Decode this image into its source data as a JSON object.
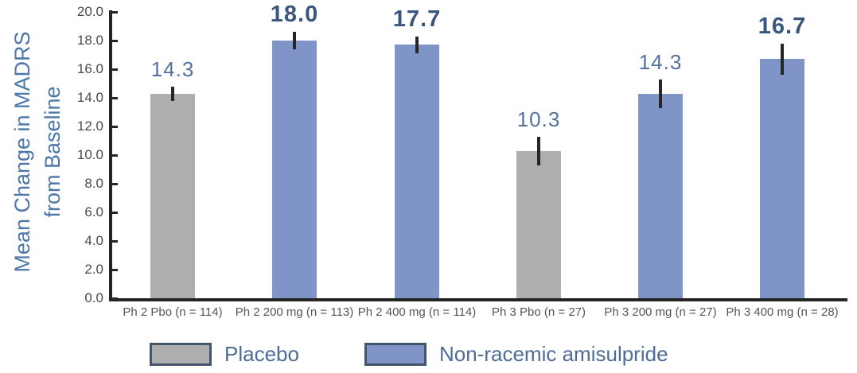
{
  "chart_data": {
    "type": "bar",
    "title": "",
    "ylabel_line1": "Mean Change in MADRS",
    "ylabel_line2": "from Baseline",
    "ylim": [
      0,
      20
    ],
    "ytick_step": 2,
    "ytick_labels": [
      "0.0",
      "2.0",
      "4.0",
      "6.0",
      "8.0",
      "10.0",
      "12.0",
      "14.0",
      "16.0",
      "18.0",
      "20.0"
    ],
    "grid": "off",
    "legend_position": "bottom",
    "categories": [
      "Ph 2 Pbo (n = 114)",
      "Ph 2 200 mg (n = 113)",
      "Ph 2 400 mg (n = 114)",
      "Ph 3 Pbo (n = 27)",
      "Ph 3 200 mg (n = 27)",
      "Ph 3 400 mg (n = 28)"
    ],
    "values": [
      14.3,
      18.0,
      17.7,
      10.3,
      14.3,
      16.7
    ],
    "value_labels": [
      "14.3",
      "18.0",
      "17.7",
      "10.3",
      "14.3",
      "16.7"
    ],
    "value_label_bold": [
      false,
      true,
      true,
      false,
      false,
      true
    ],
    "error_bars": [
      0.5,
      0.6,
      0.6,
      1.0,
      1.0,
      1.1
    ],
    "bar_series": [
      "placebo",
      "nonracemic",
      "nonracemic",
      "placebo",
      "nonracemic",
      "nonracemic"
    ],
    "series_colors": {
      "placebo": "#AEAEAE",
      "nonracemic": "#8095C7"
    },
    "legend": [
      {
        "key": "placebo",
        "label": "Placebo",
        "color": "#AEAEAE"
      },
      {
        "key": "nonracemic",
        "label": "Non-racemic amisulpride",
        "color": "#8095C7"
      }
    ]
  },
  "colors": {
    "axis": "#242424",
    "error_bar": "#262626",
    "tick_label": "#4a4a4a",
    "category_label": "#555555",
    "ylabel": "#4C77A9",
    "value_regular": "#54719F",
    "value_bold": "#3A567E",
    "legend_text": "#4F6B98",
    "legend_border": "#44546A",
    "background": "#ffffff"
  }
}
